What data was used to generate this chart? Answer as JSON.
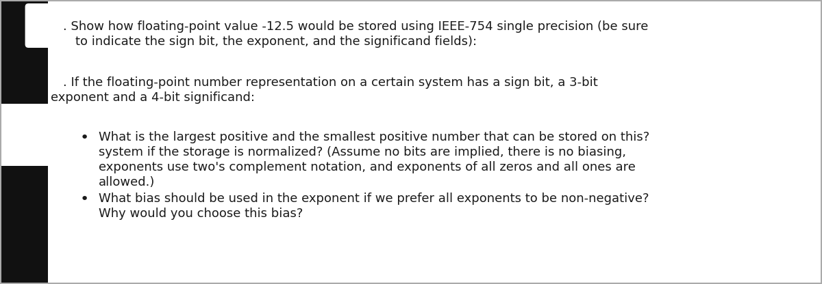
{
  "background_color": "#ffffff",
  "text_color": "#1a1a1a",
  "font_size": 13.0,
  "left_bar_color": "#111111",
  "left_bar_width": 0.058,
  "para1_line1": ". Show how floating-point value -12.5 would be stored using IEEE-754 single precision (be sure",
  "para1_line2": "to indicate the sign bit, the exponent, and the significand fields):",
  "para2_line1": ". If the floating-point number representation on a certain system has a sign bit, a 3-bit",
  "para2_line2": "exponent and a 4-bit significand:",
  "bullet1_line1": "What is the largest positive and the smallest positive number that can be stored on this?",
  "bullet1_line2": "system if the storage is normalized? (Assume no bits are implied, there is no biasing,",
  "bullet1_line3": "exponents use two's complement notation, and exponents of all zeros and all ones are",
  "bullet1_line4": "allowed.)",
  "bullet2_line1": "What bias should be used in the exponent if we prefer all exponents to be non-negative?",
  "bullet2_line2": "Why would you choose this bias?",
  "bullet_symbol": "•"
}
